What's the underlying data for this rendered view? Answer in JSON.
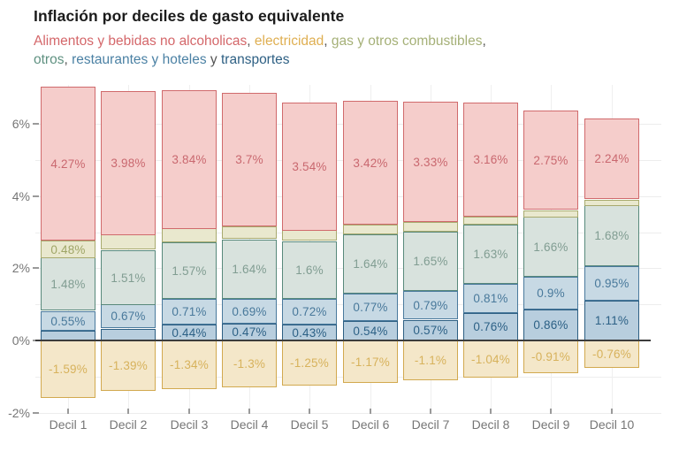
{
  "title": "Inflación por deciles de gasto equivalente",
  "subtitle": {
    "parts": [
      {
        "name": "legend-alimentos",
        "text": "Alimentos y bebidas no alcoholicas",
        "color": "#d4676a"
      },
      {
        "name": "separator",
        "text": ", ",
        "color": "#555555"
      },
      {
        "name": "legend-electricidad",
        "text": "electricidad",
        "color": "#dfaf52"
      },
      {
        "name": "separator",
        "text": ", ",
        "color": "#555555"
      },
      {
        "name": "legend-gas",
        "text": "gas y otros combustibles",
        "color": "#a5b077"
      },
      {
        "name": "separator",
        "text": ",",
        "color": "#555555"
      },
      {
        "break": true
      },
      {
        "name": "legend-otros",
        "text": "otros",
        "color": "#5f9181"
      },
      {
        "name": "separator",
        "text": ", ",
        "color": "#555555"
      },
      {
        "name": "legend-restaurantes",
        "text": "restaurantes y hoteles",
        "color": "#4b81a4"
      },
      {
        "name": "separator",
        "text": " y ",
        "color": "#555555"
      },
      {
        "name": "legend-transportes",
        "text": "transportes",
        "color": "#2e6084"
      }
    ]
  },
  "chart_data": {
    "type": "bar",
    "stacked": true,
    "stack_order": "bottom-to-top-then-negative",
    "title": "Inflación por deciles de gasto equivalente",
    "xlabel": "",
    "ylabel": "",
    "ylim": [
      -2.2,
      7.2
    ],
    "grid": true,
    "legend_position": "inline-subtitle",
    "categories": [
      "Decil 1",
      "Decil 2",
      "Decil 3",
      "Decil 4",
      "Decil 5",
      "Decil 6",
      "Decil 7",
      "Decil 8",
      "Decil 9",
      "Decil 10"
    ],
    "yticks": [
      {
        "value": 6,
        "label": "6%"
      },
      {
        "value": 4,
        "label": "4%"
      },
      {
        "value": 2,
        "label": "2%"
      },
      {
        "value": 0,
        "label": "0%"
      },
      {
        "value": -2,
        "label": "-2%"
      }
    ],
    "series": [
      {
        "name": "transportes",
        "fill": "#b8cede",
        "stroke": "#2d5f83",
        "label_color": "#2d6186",
        "values": [
          0.26,
          0.33,
          0.44,
          0.47,
          0.43,
          0.54,
          0.57,
          0.76,
          0.86,
          1.11
        ],
        "labels": [
          "",
          "",
          "0.44%",
          "0.47%",
          "0.43%",
          "0.54%",
          "0.57%",
          "0.76%",
          "0.86%",
          "1.11%"
        ]
      },
      {
        "name": "restaurantes y hoteles",
        "fill": "#c7d9e4",
        "stroke": "#4a7a9d",
        "label_color": "#49799b",
        "values": [
          0.55,
          0.67,
          0.71,
          0.69,
          0.72,
          0.77,
          0.79,
          0.81,
          0.9,
          0.95
        ],
        "labels": [
          "0.55%",
          "0.67%",
          "0.71%",
          "0.69%",
          "0.72%",
          "0.77%",
          "0.79%",
          "0.81%",
          "0.9%",
          "0.95%"
        ]
      },
      {
        "name": "otros",
        "fill": "#d8e2dd",
        "stroke": "#58897b",
        "label_color": "#819d92",
        "values": [
          1.48,
          1.51,
          1.57,
          1.64,
          1.6,
          1.64,
          1.65,
          1.63,
          1.66,
          1.68
        ],
        "labels": [
          "1.48%",
          "1.51%",
          "1.57%",
          "1.64%",
          "1.6%",
          "1.64%",
          "1.65%",
          "1.63%",
          "1.66%",
          "1.68%"
        ]
      },
      {
        "name": "gas y otros combustibles",
        "fill": "#e9e8ce",
        "stroke": "#a8aa6e",
        "label_color": "#9fa566",
        "values": [
          0.48,
          0.42,
          0.38,
          0.35,
          0.3,
          0.27,
          0.27,
          0.23,
          0.19,
          0.16
        ],
        "labels": [
          "0.48%",
          "",
          "",
          "",
          "",
          "",
          "",
          "",
          "",
          ""
        ]
      },
      {
        "name": "Alimentos y bebidas no alcoholicas",
        "fill": "#f5cdcb",
        "stroke": "#d06a6c",
        "label_color": "#c9686f",
        "values": [
          4.27,
          3.98,
          3.84,
          3.7,
          3.54,
          3.42,
          3.33,
          3.16,
          2.75,
          2.24
        ],
        "labels": [
          "4.27%",
          "3.98%",
          "3.84%",
          "3.7%",
          "3.54%",
          "3.42%",
          "3.33%",
          "3.16%",
          "2.75%",
          "2.24%"
        ]
      },
      {
        "name": "electricidad",
        "fill": "#f4e7c9",
        "stroke": "#d2a94f",
        "label_color": "#d7b25c",
        "values": [
          -1.59,
          -1.39,
          -1.34,
          -1.3,
          -1.25,
          -1.17,
          -1.1,
          -1.04,
          -0.91,
          -0.76
        ],
        "labels": [
          "-1.59%",
          "-1.39%",
          "-1.34%",
          "-1.3%",
          "-1.25%",
          "-1.17%",
          "-1.1%",
          "-1.04%",
          "-0.91%",
          "-0.76%"
        ]
      }
    ]
  }
}
